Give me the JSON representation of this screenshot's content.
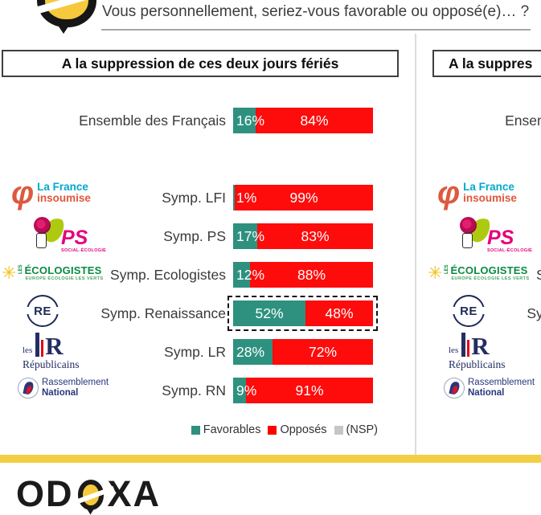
{
  "header": {
    "question": "Vous personnellement, seriez-vous favorable ou opposé(e)… ?"
  },
  "panels": {
    "left": {
      "title": "A la suppression de ces deux jours fériés"
    },
    "right": {
      "title": "A la suppres"
    }
  },
  "rows": [
    {
      "label": "Ensemble des Français",
      "logo": "none",
      "fav_label": "16%",
      "opp_label": "84%"
    },
    {
      "label": "Symp. LFI",
      "logo": "lfi",
      "fav_label": "1%",
      "opp_label": "99%"
    },
    {
      "label": "Symp. PS",
      "logo": "ps",
      "fav_label": "17%",
      "opp_label": "83%"
    },
    {
      "label": "Symp. Ecologistes",
      "logo": "ecologistes",
      "fav_label": "12%",
      "opp_label": "88%"
    },
    {
      "label": "Symp. Renaissance",
      "logo": "renaissance",
      "fav_label": "52%",
      "opp_label": "48%",
      "highlighted": true
    },
    {
      "label": "Symp. LR",
      "logo": "lr",
      "fav_label": "28%",
      "opp_label": "72%"
    },
    {
      "label": "Symp. RN",
      "logo": "rn",
      "fav_label": "9%",
      "opp_label": "91%"
    }
  ],
  "chart_data": {
    "type": "bar",
    "orientation": "horizontal-stacked",
    "title": "Vous personnellement, seriez-vous favorable ou opposé(e)… ?",
    "panel_title": "A la suppression de ces deux jours fériés",
    "categories": [
      "Ensemble des Français",
      "Symp. LFI",
      "Symp. PS",
      "Symp. Ecologistes",
      "Symp. Renaissance",
      "Symp. LR",
      "Symp. RN"
    ],
    "series": [
      {
        "name": "Favorables",
        "color": "#2E9180",
        "values": [
          16,
          1,
          17,
          12,
          52,
          28,
          9
        ]
      },
      {
        "name": "Opposés",
        "color": "#FE0B0B",
        "values": [
          84,
          99,
          83,
          88,
          48,
          72,
          91
        ]
      }
    ],
    "xlim": [
      0,
      100
    ],
    "highlighted_category": "Symp. Renaissance",
    "legend_position": "bottom-right",
    "legend_extra": "(NSP)"
  },
  "legend": {
    "items": [
      {
        "label": "Favorables",
        "color": "#2E9180"
      },
      {
        "label": "Opposés",
        "color": "#FE0000"
      },
      {
        "label": "(NSP)",
        "color": "#C6C6C6"
      }
    ]
  },
  "logos": {
    "lfi": {
      "phi": "φ",
      "line1": "La France",
      "line2": "insoumise"
    },
    "ps": {
      "name": "PS",
      "subtitle": "SOCIAL-ÉCOLOGIE"
    },
    "ecologistes": {
      "les": "LES",
      "name": "ÉCOLOGISTES",
      "subtitle": "EUROPE ÉCOLOGIE LES VERTS"
    },
    "renaissance": {
      "name": "RE"
    },
    "lr": {
      "les": "les",
      "letter": "R",
      "name": "Républicains"
    },
    "rn": {
      "line1": "Rassemblement",
      "line2": "National"
    }
  },
  "footer": {
    "brand": "ODOXA",
    "brand_pre": "OD",
    "brand_post": "XA"
  },
  "colors": {
    "favorable": "#2E9180",
    "oppose": "#FE0B0B",
    "nsp": "#C6C6C6",
    "accent_yellow": "#F2CF44"
  }
}
